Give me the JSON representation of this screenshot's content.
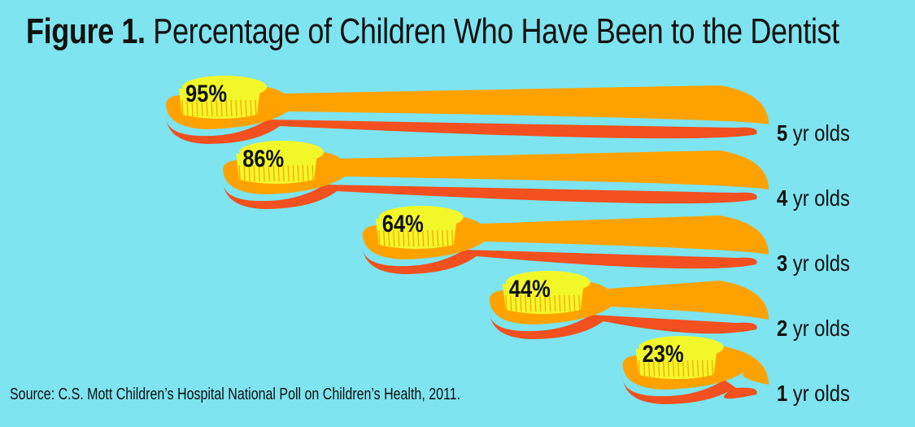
{
  "chart_data": {
    "type": "bar",
    "title_bold": "Figure 1.",
    "title": "Percentage of Children Who Have Been to the Dentist",
    "categories": [
      "5 yr olds",
      "4 yr olds",
      "3 yr olds",
      "2 yr olds",
      "1 yr olds"
    ],
    "category_numbers": [
      "5",
      "4",
      "3",
      "2",
      "1"
    ],
    "category_suffix": "yr olds",
    "values": [
      95,
      86,
      64,
      44,
      23
    ],
    "value_labels": [
      "95%",
      "86%",
      "64%",
      "44%",
      "23%"
    ],
    "unit": "%",
    "orientation": "horizontal",
    "mark_style": "toothbrush",
    "xlim": [
      0,
      100
    ],
    "source": "Source: C.S. Mott Children’s Hospital National Poll on Children’s Health, 2011."
  },
  "colors": {
    "background": "#7de4f0",
    "handle": "#ffa200",
    "handle_shadow": "#f2501e",
    "bristles": "#f2f72a",
    "bristle_lines": "#ffa200",
    "text": "#111111"
  }
}
